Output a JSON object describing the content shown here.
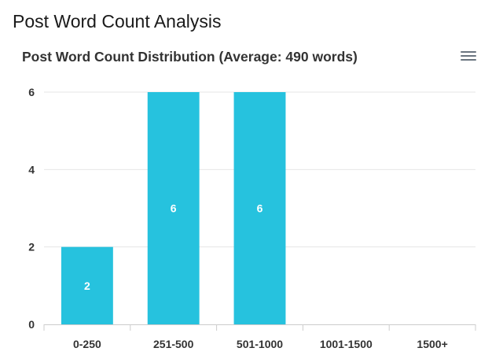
{
  "page": {
    "title": "Post Word Count Analysis"
  },
  "chart_data": {
    "type": "bar",
    "title": "Post Word Count Distribution (Average: 490 words)",
    "categories": [
      "0-250",
      "251-500",
      "501-1000",
      "1001-1500",
      "1500+"
    ],
    "values": [
      2,
      6,
      6,
      0,
      0
    ],
    "ylim": [
      0,
      6
    ],
    "yticks": [
      0,
      2,
      4,
      6
    ],
    "grid": true,
    "bar_color": "#26c2de",
    "data_labels": [
      "2",
      "6",
      "6",
      "",
      ""
    ]
  },
  "toolbar": {
    "menu_icon": "hamburger-menu-icon"
  }
}
